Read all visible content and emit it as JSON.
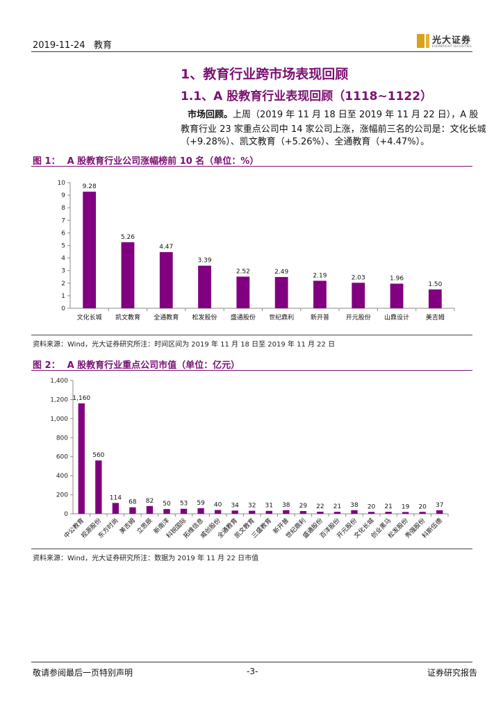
{
  "header": {
    "date": "2019-11-24",
    "category": "教育",
    "logo_name": "光大证券",
    "logo_sub": "EVERBRIGHT SECURITIES"
  },
  "section_title": "1、教育行业跨市场表现回顾",
  "subsection_title": "1.1、A 股教育行业表现回顾（1118~1122）",
  "body": {
    "lead": "市场回顾。",
    "line1": "上周（2019 年 11 月 18 日至 2019 年 11 月 22 日），A 股",
    "line2": "教育行业 23 家重点公司中 14 家公司上涨，涨幅前三名的公司是：文化长城",
    "line3": "（+9.28%）、凯文教育（+5.26%）、全通教育（+4.47%）。"
  },
  "figure1": {
    "label": "图 1：",
    "title": "A 股教育行业公司涨幅榜前 10 名（单位：%）",
    "source": "资料来源：Wind，光大证券研究所注：时间区间为 2019 年 11 月 18 日至 2019 年 11 月 22 日"
  },
  "figure2": {
    "label": "图 2：",
    "title": "A 股教育行业重点公司市值（单位：亿元）",
    "source": "资料来源：Wind，光大证券研究所注：数据为 2019 年 11 月 22 日市值"
  },
  "footer": {
    "left": "敬请参阅最后一页特别声明",
    "page": "-3-",
    "right": "证券研究报告"
  },
  "colors": {
    "bar": "#800080",
    "accent": "#7b1072"
  },
  "chart_data": [
    {
      "type": "bar",
      "title": "",
      "xlabel": "",
      "ylabel": "",
      "ylim": [
        0,
        10
      ],
      "yticks": [
        0,
        1,
        2,
        3,
        4,
        5,
        6,
        7,
        8,
        9,
        10
      ],
      "grid": false,
      "categories": [
        "文化长城",
        "凯文教育",
        "全通教育",
        "松发股份",
        "盛通股份",
        "世纪鼎利",
        "新开普",
        "开元股份",
        "山鼎设计",
        "美吉姆"
      ],
      "values": [
        9.28,
        5.26,
        4.47,
        3.39,
        2.52,
        2.49,
        2.19,
        2.03,
        1.96,
        1.5
      ],
      "labels": [
        "9.28",
        "5.26",
        "4.47",
        "3.39",
        "2.52",
        "2.49",
        "2.19",
        "2.03",
        "1.96",
        "1.50"
      ]
    },
    {
      "type": "bar",
      "title": "",
      "xlabel": "",
      "ylabel": "",
      "ylim": [
        0,
        1400
      ],
      "yticks": [
        0,
        200,
        400,
        600,
        800,
        1000,
        1200,
        1400
      ],
      "grid": false,
      "categories": [
        "中公教育",
        "视源股份",
        "东方时尚",
        "美吉姆",
        "立思辰",
        "新南洋",
        "科锐国际",
        "拓维信息",
        "威创股份",
        "全通教育",
        "凯文教育",
        "三盛教育",
        "新开普",
        "世纪鼎利",
        "盛通股份",
        "百洋股份",
        "开元股份",
        "文化长城",
        "创业黑马",
        "松发股份",
        "秀强股份",
        "科斯伍德"
      ],
      "values": [
        1160,
        560,
        114,
        68,
        82,
        50,
        53,
        59,
        40,
        34,
        32,
        31,
        38,
        29,
        22,
        21,
        38,
        20,
        21,
        19,
        20,
        37
      ],
      "labels": [
        "1,160",
        "560",
        "114",
        "68",
        "82",
        "50",
        "53",
        "59",
        "40",
        "34",
        "32",
        "31",
        "38",
        "29",
        "22",
        "21",
        "38",
        "20",
        "21",
        "19",
        "20",
        "37"
      ]
    }
  ]
}
